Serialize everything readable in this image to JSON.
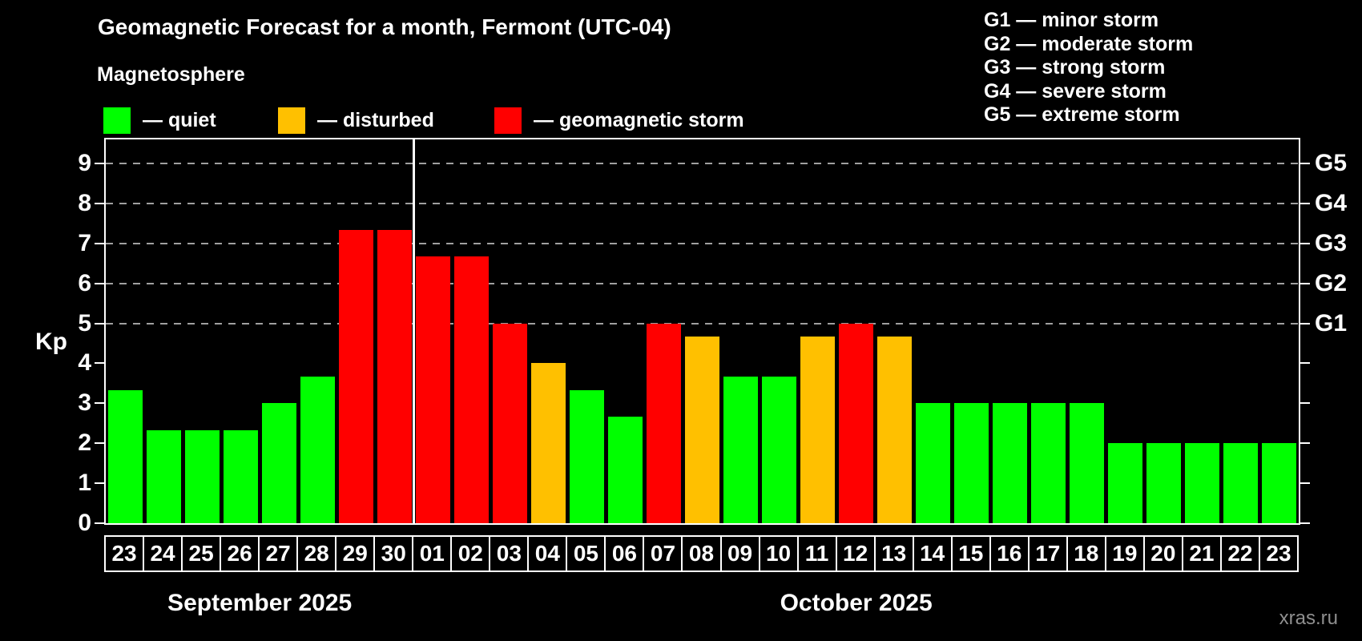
{
  "header": {
    "title": "Geomagnetic Forecast for a month, Fermont (UTC-04)",
    "subtitle": "Magnetosphere"
  },
  "legend": {
    "items": [
      {
        "key": "quiet",
        "label": "— quiet",
        "color": "#00ff00"
      },
      {
        "key": "disturbed",
        "label": "— disturbed",
        "color": "#ffc000"
      },
      {
        "key": "storm",
        "label": "— geomagnetic storm",
        "color": "#ff0000"
      }
    ]
  },
  "g_scale_legend": [
    "G1 — minor storm",
    "G2 — moderate storm",
    "G3 — strong storm",
    "G4 — severe storm",
    "G5 — extreme storm"
  ],
  "watermark": "xras.ru",
  "chart_data": {
    "type": "bar",
    "title": "Geomagnetic Forecast for a month, Fermont (UTC-04)",
    "ylabel": "Kp",
    "ylim": [
      0,
      9.6
    ],
    "yticks": [
      0,
      1,
      2,
      3,
      4,
      5,
      6,
      7,
      8,
      9
    ],
    "gridlines_at": [
      5,
      6,
      7,
      8,
      9
    ],
    "grid": "dashed, only at storm levels 5-9",
    "legend_position": "top",
    "right_axis_labels": [
      {
        "value": 5,
        "label": "G1"
      },
      {
        "value": 6,
        "label": "G2"
      },
      {
        "value": 7,
        "label": "G3"
      },
      {
        "value": 8,
        "label": "G4"
      },
      {
        "value": 9,
        "label": "G5"
      }
    ],
    "status_colors": {
      "quiet": "#00ff00",
      "disturbed": "#ffc000",
      "storm": "#ff0000"
    },
    "groups": [
      {
        "label": "September 2025",
        "start_index": 0,
        "count": 8
      },
      {
        "label": "October 2025",
        "start_index": 8,
        "count": 23
      }
    ],
    "month_separator_after_index": 7,
    "bars": [
      {
        "date": "23",
        "value": 3.33,
        "status": "quiet"
      },
      {
        "date": "24",
        "value": 2.33,
        "status": "quiet"
      },
      {
        "date": "25",
        "value": 2.33,
        "status": "quiet"
      },
      {
        "date": "26",
        "value": 2.33,
        "status": "quiet"
      },
      {
        "date": "27",
        "value": 3.0,
        "status": "quiet"
      },
      {
        "date": "28",
        "value": 3.67,
        "status": "quiet"
      },
      {
        "date": "29",
        "value": 7.33,
        "status": "storm"
      },
      {
        "date": "30",
        "value": 7.33,
        "status": "storm"
      },
      {
        "date": "01",
        "value": 6.67,
        "status": "storm"
      },
      {
        "date": "02",
        "value": 6.67,
        "status": "storm"
      },
      {
        "date": "03",
        "value": 5.0,
        "status": "storm"
      },
      {
        "date": "04",
        "value": 4.0,
        "status": "disturbed"
      },
      {
        "date": "05",
        "value": 3.33,
        "status": "quiet"
      },
      {
        "date": "06",
        "value": 2.67,
        "status": "quiet"
      },
      {
        "date": "07",
        "value": 5.0,
        "status": "storm"
      },
      {
        "date": "08",
        "value": 4.67,
        "status": "disturbed"
      },
      {
        "date": "09",
        "value": 3.67,
        "status": "quiet"
      },
      {
        "date": "10",
        "value": 3.67,
        "status": "quiet"
      },
      {
        "date": "11",
        "value": 4.67,
        "status": "disturbed"
      },
      {
        "date": "12",
        "value": 5.0,
        "status": "storm"
      },
      {
        "date": "13",
        "value": 4.67,
        "status": "disturbed"
      },
      {
        "date": "14",
        "value": 3.0,
        "status": "quiet"
      },
      {
        "date": "15",
        "value": 3.0,
        "status": "quiet"
      },
      {
        "date": "16",
        "value": 3.0,
        "status": "quiet"
      },
      {
        "date": "17",
        "value": 3.0,
        "status": "quiet"
      },
      {
        "date": "18",
        "value": 3.0,
        "status": "quiet"
      },
      {
        "date": "19",
        "value": 2.0,
        "status": "quiet"
      },
      {
        "date": "20",
        "value": 2.0,
        "status": "quiet"
      },
      {
        "date": "21",
        "value": 2.0,
        "status": "quiet"
      },
      {
        "date": "22",
        "value": 2.0,
        "status": "quiet"
      },
      {
        "date": "23",
        "value": 2.0,
        "status": "quiet"
      }
    ]
  }
}
